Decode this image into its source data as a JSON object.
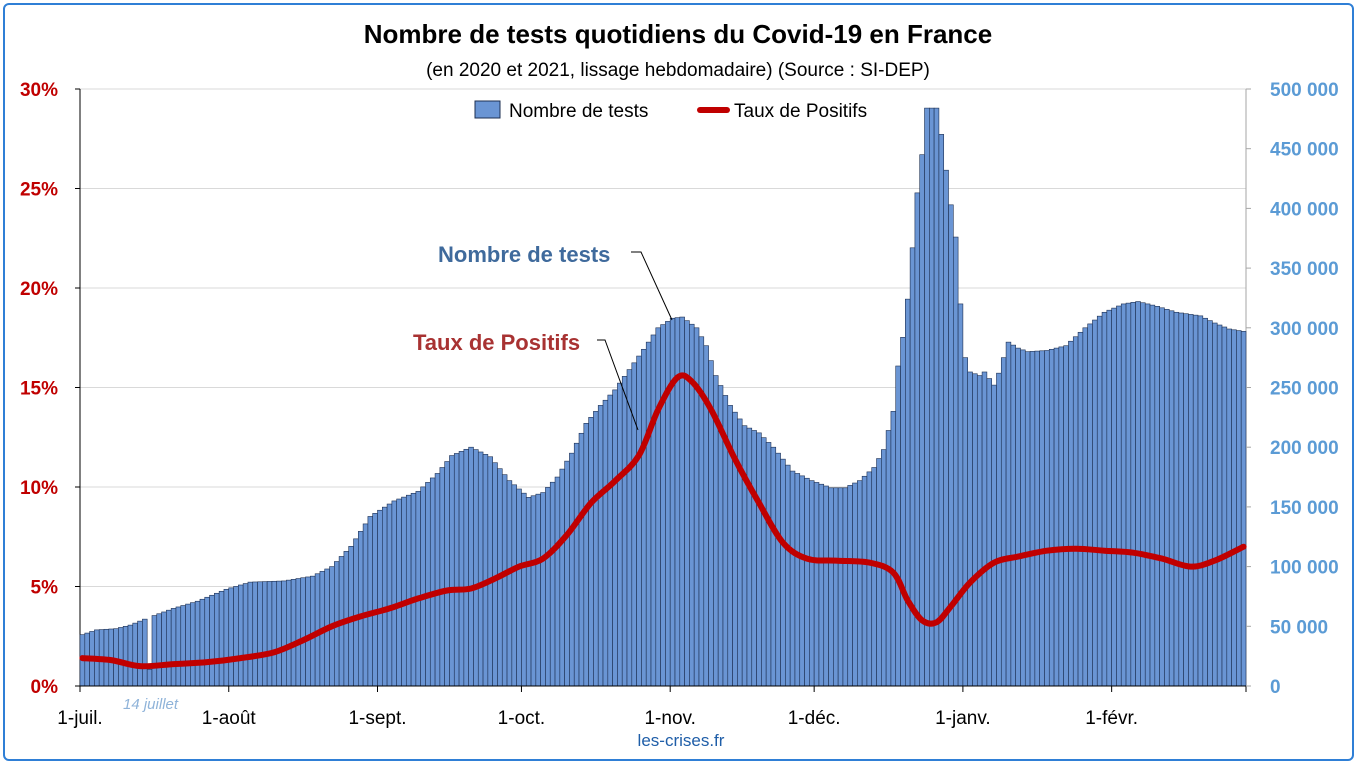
{
  "chart_data": {
    "type": "bar",
    "title": "Nombre de tests quotidiens du Covid-19 en France",
    "subtitle": "(en 2020 et 2021, lissage hebdomadaire) (Source : SI-DEP)",
    "legend": {
      "placement": "top-center",
      "items": [
        "Nombre de tests",
        "Taux de Positifs"
      ]
    },
    "colors": {
      "bars": "#6a95d4",
      "bar_edge": "#1c2f52",
      "line": "#c00000",
      "left_axis": "#c00000",
      "right_axis": "#5b9bd5"
    },
    "grid": true,
    "left_axis": {
      "ylim": [
        0,
        30
      ],
      "ticks": [
        0,
        5,
        10,
        15,
        20,
        25,
        30
      ],
      "tick_labels": [
        "0%",
        "5%",
        "10%",
        "15%",
        "20%",
        "25%",
        "30%"
      ]
    },
    "right_axis": {
      "ylim": [
        0,
        500000
      ],
      "ticks": [
        0,
        50000,
        100000,
        150000,
        200000,
        250000,
        300000,
        350000,
        400000,
        450000,
        500000
      ],
      "tick_labels": [
        "0",
        "50 000",
        "100 000",
        "150 000",
        "200 000",
        "250 000",
        "300 000",
        "350 000",
        "400 000",
        "450 000",
        "500 000"
      ]
    },
    "x_axis": {
      "range": [
        "2020-07-01",
        "2021-02-28"
      ],
      "month_ticks": [
        {
          "label": "1-juil.",
          "date": "2020-07-01"
        },
        {
          "label": "1-août",
          "date": "2020-08-01"
        },
        {
          "label": "1-sept.",
          "date": "2020-09-01"
        },
        {
          "label": "1-oct.",
          "date": "2020-10-01"
        },
        {
          "label": "1-nov.",
          "date": "2020-11-01"
        },
        {
          "label": "1-déc.",
          "date": "2020-12-01"
        },
        {
          "label": "1-janv.",
          "date": "2021-01-01"
        },
        {
          "label": "1-févr.",
          "date": "2021-02-01"
        }
      ]
    },
    "series": [
      {
        "name": "Nombre de tests",
        "kind": "bar",
        "axis": "right",
        "points": [
          [
            "2020-07-01",
            43000
          ],
          [
            "2020-07-04",
            47000
          ],
          [
            "2020-07-08",
            48000
          ],
          [
            "2020-07-11",
            51000
          ],
          [
            "2020-07-14",
            56000
          ],
          [
            "2020-07-15",
            14000
          ],
          [
            "2020-07-16",
            59000
          ],
          [
            "2020-07-20",
            65000
          ],
          [
            "2020-07-25",
            71000
          ],
          [
            "2020-07-31",
            81000
          ],
          [
            "2020-08-05",
            87000
          ],
          [
            "2020-08-12",
            88000
          ],
          [
            "2020-08-18",
            92000
          ],
          [
            "2020-08-22",
            100000
          ],
          [
            "2020-08-26",
            117000
          ],
          [
            "2020-08-30",
            142000
          ],
          [
            "2020-09-04",
            155000
          ],
          [
            "2020-09-09",
            163000
          ],
          [
            "2020-09-13",
            178000
          ],
          [
            "2020-09-16",
            193000
          ],
          [
            "2020-09-20",
            200000
          ],
          [
            "2020-09-24",
            192000
          ],
          [
            "2020-09-28",
            172000
          ],
          [
            "2020-10-02",
            158000
          ],
          [
            "2020-10-05",
            162000
          ],
          [
            "2020-10-08",
            175000
          ],
          [
            "2020-10-11",
            195000
          ],
          [
            "2020-10-14",
            220000
          ],
          [
            "2020-10-17",
            235000
          ],
          [
            "2020-10-20",
            248000
          ],
          [
            "2020-10-23",
            265000
          ],
          [
            "2020-10-26",
            282000
          ],
          [
            "2020-10-29",
            300000
          ],
          [
            "2020-11-01",
            308000
          ],
          [
            "2020-11-03",
            309000
          ],
          [
            "2020-11-06",
            300000
          ],
          [
            "2020-11-08",
            285000
          ],
          [
            "2020-11-10",
            260000
          ],
          [
            "2020-11-13",
            235000
          ],
          [
            "2020-11-16",
            218000
          ],
          [
            "2020-11-19",
            212000
          ],
          [
            "2020-11-22",
            200000
          ],
          [
            "2020-11-26",
            180000
          ],
          [
            "2020-11-30",
            172000
          ],
          [
            "2020-12-04",
            166000
          ],
          [
            "2020-12-07",
            166000
          ],
          [
            "2020-12-10",
            172000
          ],
          [
            "2020-12-13",
            183000
          ],
          [
            "2020-12-15",
            198000
          ],
          [
            "2020-12-17",
            230000
          ],
          [
            "2020-12-18",
            268000
          ],
          [
            "2020-12-19",
            292000
          ],
          [
            "2020-12-20",
            324000
          ],
          [
            "2020-12-21",
            367000
          ],
          [
            "2020-12-22",
            413000
          ],
          [
            "2020-12-23",
            445000
          ],
          [
            "2020-12-24",
            484000
          ],
          [
            "2020-12-26",
            484000
          ],
          [
            "2020-12-27",
            462000
          ],
          [
            "2020-12-28",
            432000
          ],
          [
            "2020-12-29",
            403000
          ],
          [
            "2020-12-30",
            376000
          ],
          [
            "2020-12-31",
            320000
          ],
          [
            "2021-01-01",
            275000
          ],
          [
            "2021-01-02",
            263000
          ],
          [
            "2021-01-04",
            260000
          ],
          [
            "2021-01-05",
            263000
          ],
          [
            "2021-01-07",
            252000
          ],
          [
            "2021-01-08",
            262000
          ],
          [
            "2021-01-10",
            288000
          ],
          [
            "2021-01-12",
            283000
          ],
          [
            "2021-01-14",
            280000
          ],
          [
            "2021-01-18",
            281000
          ],
          [
            "2021-01-22",
            285000
          ],
          [
            "2021-01-26",
            300000
          ],
          [
            "2021-01-30",
            313000
          ],
          [
            "2021-02-03",
            320000
          ],
          [
            "2021-02-06",
            322000
          ],
          [
            "2021-02-10",
            318000
          ],
          [
            "2021-02-14",
            313000
          ],
          [
            "2021-02-19",
            310000
          ],
          [
            "2021-02-22",
            304000
          ],
          [
            "2021-02-25",
            299000
          ],
          [
            "2021-02-28",
            297000
          ]
        ]
      },
      {
        "name": "Taux de Positifs",
        "kind": "line",
        "axis": "left",
        "points": [
          [
            "2020-07-01",
            1.4
          ],
          [
            "2020-07-07",
            1.3
          ],
          [
            "2020-07-13",
            1.0
          ],
          [
            "2020-07-20",
            1.1
          ],
          [
            "2020-07-27",
            1.2
          ],
          [
            "2020-08-03",
            1.4
          ],
          [
            "2020-08-10",
            1.7
          ],
          [
            "2020-08-16",
            2.3
          ],
          [
            "2020-08-22",
            3.0
          ],
          [
            "2020-08-28",
            3.5
          ],
          [
            "2020-09-03",
            3.9
          ],
          [
            "2020-09-09",
            4.4
          ],
          [
            "2020-09-15",
            4.8
          ],
          [
            "2020-09-20",
            4.9
          ],
          [
            "2020-09-25",
            5.4
          ],
          [
            "2020-09-30",
            6.0
          ],
          [
            "2020-10-05",
            6.4
          ],
          [
            "2020-10-10",
            7.6
          ],
          [
            "2020-10-15",
            9.2
          ],
          [
            "2020-10-20",
            10.3
          ],
          [
            "2020-10-25",
            11.6
          ],
          [
            "2020-10-29",
            13.9
          ],
          [
            "2020-11-02",
            15.5
          ],
          [
            "2020-11-05",
            15.3
          ],
          [
            "2020-11-09",
            13.9
          ],
          [
            "2020-11-14",
            11.4
          ],
          [
            "2020-11-19",
            9.2
          ],
          [
            "2020-11-24",
            7.2
          ],
          [
            "2020-11-29",
            6.4
          ],
          [
            "2020-12-05",
            6.3
          ],
          [
            "2020-12-12",
            6.2
          ],
          [
            "2020-12-17",
            5.7
          ],
          [
            "2020-12-20",
            4.3
          ],
          [
            "2020-12-23",
            3.3
          ],
          [
            "2020-12-26",
            3.2
          ],
          [
            "2020-12-29",
            4.0
          ],
          [
            "2021-01-02",
            5.2
          ],
          [
            "2021-01-07",
            6.2
          ],
          [
            "2021-01-12",
            6.5
          ],
          [
            "2021-01-18",
            6.8
          ],
          [
            "2021-01-24",
            6.9
          ],
          [
            "2021-01-30",
            6.8
          ],
          [
            "2021-02-05",
            6.7
          ],
          [
            "2021-02-11",
            6.4
          ],
          [
            "2021-02-17",
            6.0
          ],
          [
            "2021-02-22",
            6.3
          ],
          [
            "2021-02-28",
            7.0
          ]
        ]
      }
    ],
    "annotations": [
      {
        "text": "Nombre de tests",
        "points_to": "Nombre de tests"
      },
      {
        "text": "Taux de Positifs",
        "points_to": "Taux de Positifs"
      },
      {
        "text": "14 juillet",
        "points_to": "2020-07-14 gap in bars"
      }
    ],
    "source_text": "les-crises.fr"
  }
}
